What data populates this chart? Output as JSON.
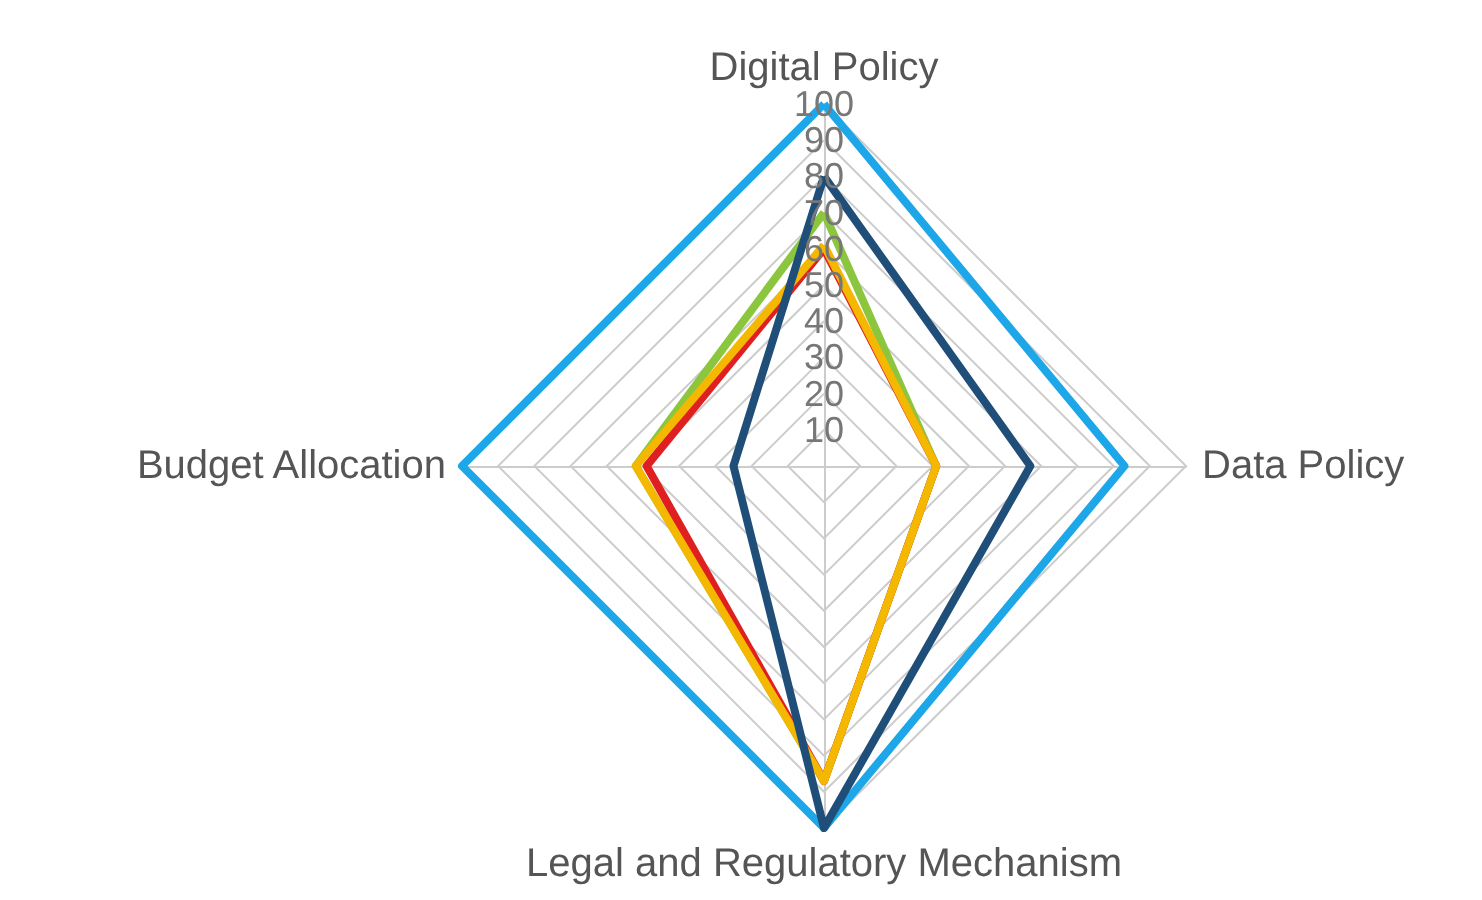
{
  "chart_data": {
    "type": "radar",
    "categories": [
      "Digital Policy",
      "Data Policy",
      "Legal and Regulatory Mechanism",
      "Budget Allocation"
    ],
    "series": [
      {
        "color": "#8cc63f",
        "values": [
          70,
          31,
          87,
          52
        ]
      },
      {
        "color": "#e02020",
        "values": [
          60,
          31,
          87,
          49
        ]
      },
      {
        "color": "#f5b800",
        "values": [
          61,
          31,
          87,
          52
        ]
      },
      {
        "color": "#1ea7e8",
        "values": [
          100,
          83,
          100,
          100
        ]
      },
      {
        "color": "#1f4e79",
        "values": [
          80,
          57,
          100,
          25
        ]
      }
    ],
    "ylim": [
      0,
      100
    ],
    "yticks": [
      10,
      20,
      30,
      40,
      50,
      60,
      70,
      80,
      90,
      100
    ],
    "grid": true,
    "marker": "none",
    "line_style": "solid"
  }
}
